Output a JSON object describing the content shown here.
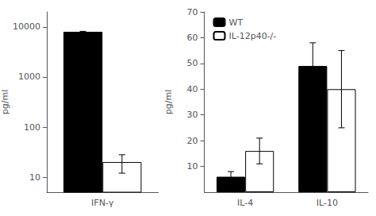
{
  "chart_data": [
    {
      "type": "bar",
      "categories": [
        "IFN-γ"
      ],
      "ylabel": "pg/ml",
      "log": "y",
      "ylim": [
        5,
        20000
      ],
      "yticks": [
        10,
        100,
        1000,
        10000
      ],
      "grid": false,
      "series": [
        {
          "name": "WT",
          "color": "#000000",
          "values": [
            8000
          ],
          "errors": [
            200
          ]
        },
        {
          "name": "IL-12p40-/-",
          "color": "#ffffff",
          "values": [
            20
          ],
          "errors": [
            8
          ]
        }
      ]
    },
    {
      "type": "bar",
      "categories": [
        "IL-4",
        "IL-10"
      ],
      "ylabel": "pg/ml",
      "ylim": [
        0,
        70
      ],
      "yticks": [
        10,
        20,
        30,
        40,
        50,
        60,
        70
      ],
      "grid": false,
      "legend": "upper left",
      "series": [
        {
          "name": "WT",
          "color": "#000000",
          "values": [
            6,
            49
          ],
          "errors": [
            2,
            9
          ]
        },
        {
          "name": "IL-12p40-/-",
          "color": "#ffffff",
          "values": [
            16,
            40
          ],
          "errors": [
            5,
            15
          ]
        }
      ]
    }
  ]
}
